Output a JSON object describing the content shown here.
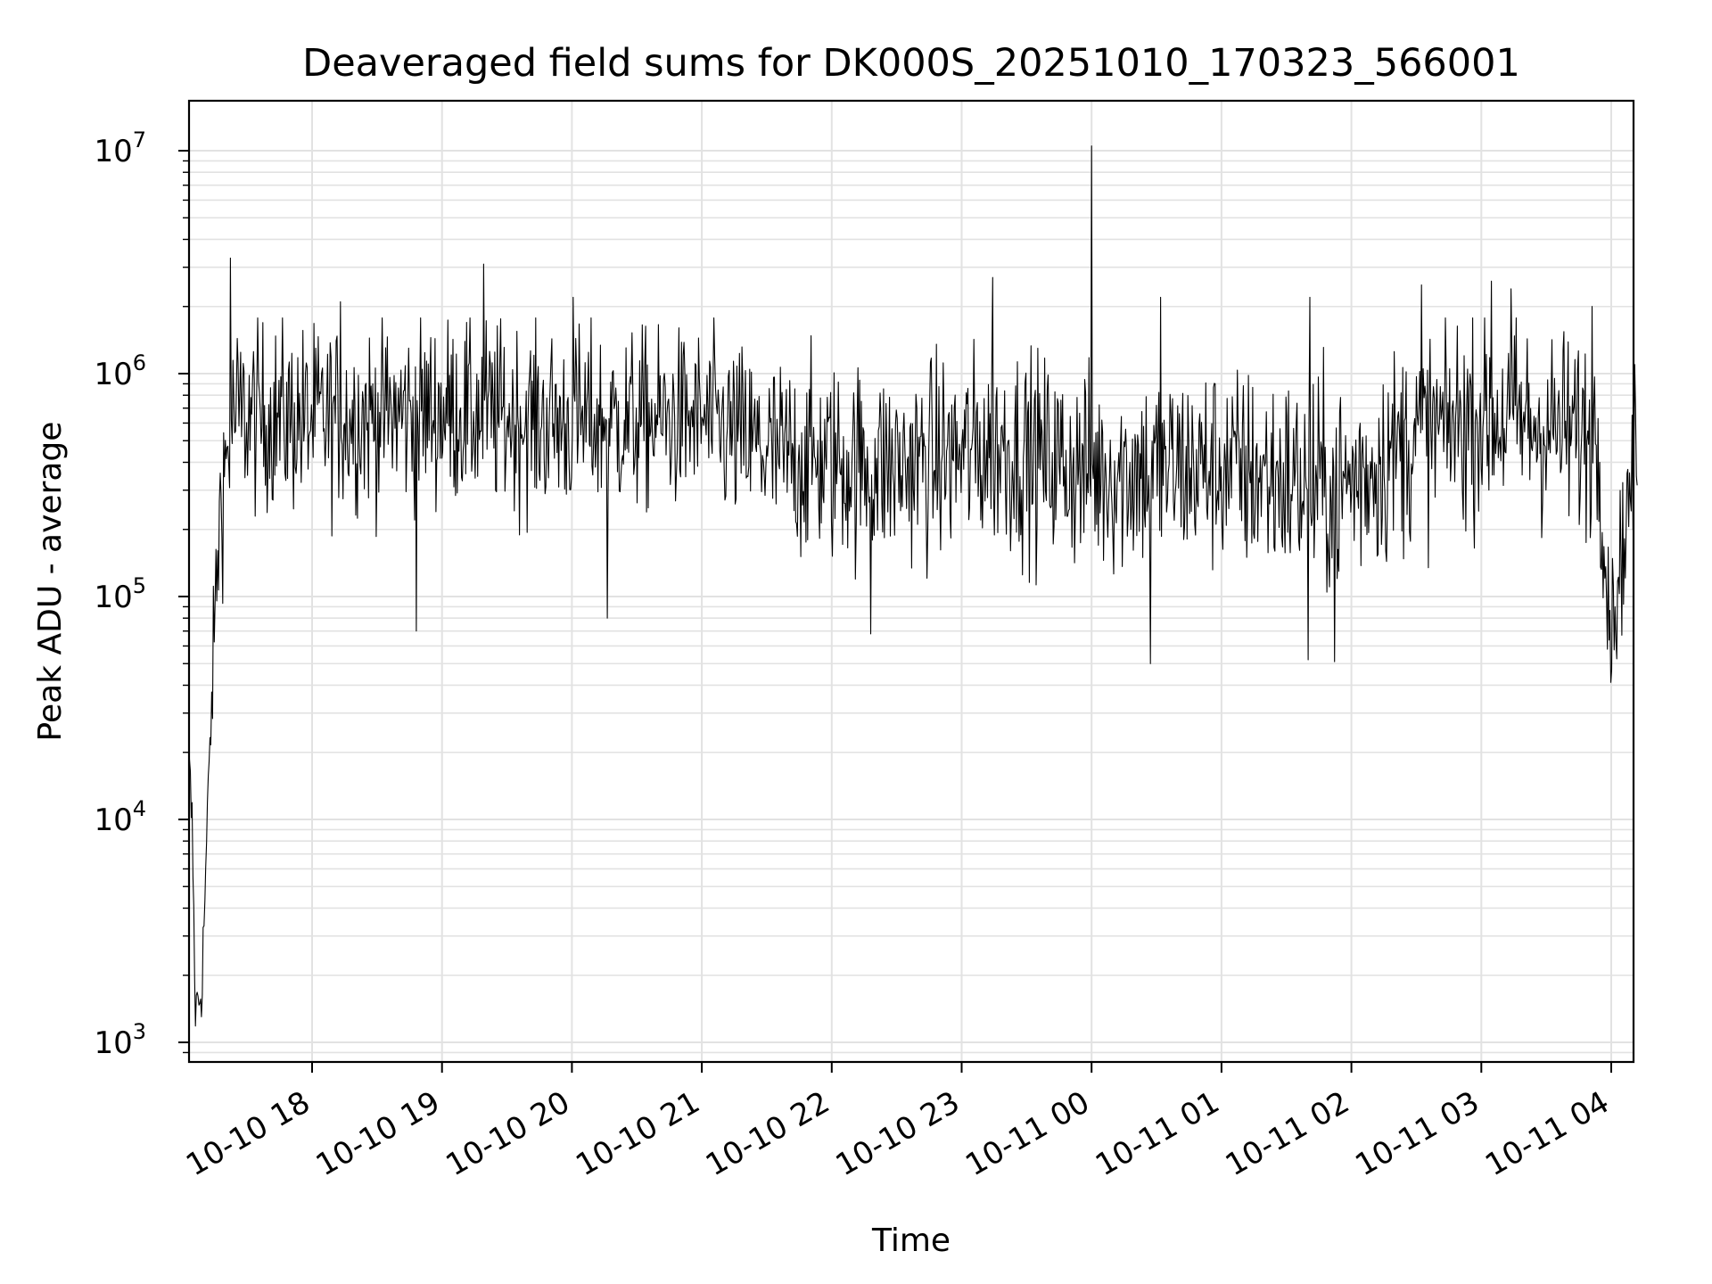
{
  "chart_data": {
    "type": "line",
    "title": "Deaveraged field sums for DK000S_20251010_170323_566001",
    "xlabel": "Time",
    "ylabel": "Peak ADU - average",
    "yscale": "log",
    "ylim": [
      800,
      17000000
    ],
    "xlim_hours": [
      17.05,
      28.2
    ],
    "grid": true,
    "line_color": "#000000",
    "x_ticks": [
      {
        "hour": 18,
        "label": "10-10 18"
      },
      {
        "hour": 19,
        "label": "10-10 19"
      },
      {
        "hour": 20,
        "label": "10-10 20"
      },
      {
        "hour": 21,
        "label": "10-10 21"
      },
      {
        "hour": 22,
        "label": "10-10 22"
      },
      {
        "hour": 23,
        "label": "10-10 23"
      },
      {
        "hour": 24,
        "label": "10-11 00"
      },
      {
        "hour": 25,
        "label": "10-11 01"
      },
      {
        "hour": 26,
        "label": "10-11 02"
      },
      {
        "hour": 27,
        "label": "10-11 03"
      },
      {
        "hour": 28,
        "label": "10-11 04"
      }
    ],
    "y_ticks": [
      {
        "value": 1000,
        "base": "10",
        "exp": "3"
      },
      {
        "value": 10000,
        "base": "10",
        "exp": "4"
      },
      {
        "value": 100000,
        "base": "10",
        "exp": "5"
      },
      {
        "value": 1000000,
        "base": "10",
        "exp": "6"
      },
      {
        "value": 10000000,
        "base": "10",
        "exp": "7"
      }
    ],
    "series": [
      {
        "name": "Peak ADU - average",
        "envelope": [
          {
            "hour": 17.05,
            "median": 20000,
            "spread": 0.1
          },
          {
            "hour": 17.08,
            "median": 8000,
            "spread": 0.15
          },
          {
            "hour": 17.1,
            "median": 1400,
            "spread": 0.1
          },
          {
            "hour": 17.15,
            "median": 1700,
            "spread": 0.1
          },
          {
            "hour": 17.2,
            "median": 12000,
            "spread": 0.15
          },
          {
            "hour": 17.25,
            "median": 80000,
            "spread": 0.2
          },
          {
            "hour": 17.3,
            "median": 300000,
            "spread": 0.3
          },
          {
            "hour": 17.4,
            "median": 650000,
            "spread": 0.3
          },
          {
            "hour": 18.0,
            "median": 620000,
            "spread": 0.3
          },
          {
            "hour": 19.0,
            "median": 680000,
            "spread": 0.3
          },
          {
            "hour": 20.0,
            "median": 600000,
            "spread": 0.3
          },
          {
            "hour": 21.0,
            "median": 620000,
            "spread": 0.28
          },
          {
            "hour": 21.6,
            "median": 420000,
            "spread": 0.32
          },
          {
            "hour": 22.5,
            "median": 380000,
            "spread": 0.32
          },
          {
            "hour": 23.3,
            "median": 470000,
            "spread": 0.33
          },
          {
            "hour": 24.0,
            "median": 360000,
            "spread": 0.33
          },
          {
            "hour": 25.0,
            "median": 380000,
            "spread": 0.33
          },
          {
            "hour": 25.9,
            "median": 300000,
            "spread": 0.35
          },
          {
            "hour": 26.5,
            "median": 520000,
            "spread": 0.33
          },
          {
            "hour": 27.0,
            "median": 650000,
            "spread": 0.33
          },
          {
            "hour": 27.9,
            "median": 520000,
            "spread": 0.32
          },
          {
            "hour": 28.0,
            "median": 70000,
            "spread": 0.2
          },
          {
            "hour": 28.2,
            "median": 500000,
            "spread": 0.3
          }
        ],
        "spikes": [
          {
            "hour": 17.37,
            "value": 3300000
          },
          {
            "hour": 18.22,
            "value": 2100000
          },
          {
            "hour": 19.32,
            "value": 3100000
          },
          {
            "hour": 20.01,
            "value": 2200000
          },
          {
            "hour": 23.24,
            "value": 2700000
          },
          {
            "hour": 24.0,
            "value": 10500000
          },
          {
            "hour": 24.53,
            "value": 2200000
          },
          {
            "hour": 25.68,
            "value": 2200000
          },
          {
            "hour": 26.54,
            "value": 2500000
          },
          {
            "hour": 27.08,
            "value": 2600000
          },
          {
            "hour": 27.23,
            "value": 2400000
          },
          {
            "hour": 27.85,
            "value": 2000000
          },
          {
            "hour": 18.8,
            "value": 70000
          },
          {
            "hour": 20.27,
            "value": 80000
          },
          {
            "hour": 22.3,
            "value": 68000
          },
          {
            "hour": 24.45,
            "value": 50000
          },
          {
            "hour": 25.67,
            "value": 52000
          },
          {
            "hour": 25.87,
            "value": 51000
          },
          {
            "hour": 27.97,
            "value": 58000
          }
        ]
      }
    ]
  }
}
